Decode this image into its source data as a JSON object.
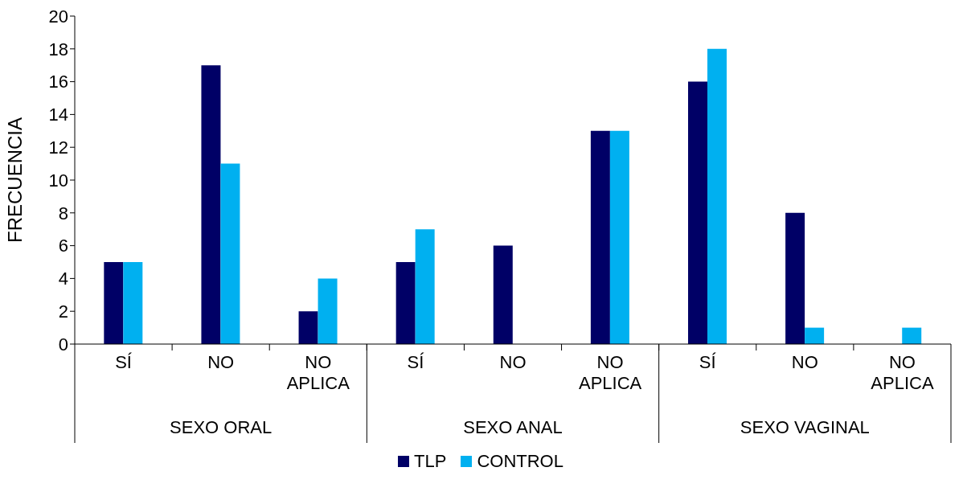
{
  "chart_data": {
    "type": "bar",
    "ylabel": "FRECUENCIA",
    "categories": [
      "SÍ",
      "NO",
      "NO APLICA",
      "SÍ",
      "NO",
      "NO APLICA",
      "SÍ",
      "NO",
      "NO APLICA"
    ],
    "annotations": [
      "SEXO ORAL",
      "SEXO ANAL",
      "SEXO VAGINAL"
    ],
    "series": [
      {
        "name": "TLP",
        "color": "#000066",
        "values": [
          5,
          17,
          2,
          5,
          6,
          13,
          16,
          8,
          0
        ]
      },
      {
        "name": "CONTROL",
        "color": "#00b0f0",
        "values": [
          5,
          11,
          4,
          7,
          0,
          13,
          18,
          1,
          1
        ]
      }
    ],
    "ylim": [
      0,
      20
    ],
    "yticks": [
      0,
      2,
      4,
      6,
      8,
      10,
      12,
      14,
      16,
      18,
      20
    ],
    "grid": false,
    "legend": "bottom"
  }
}
